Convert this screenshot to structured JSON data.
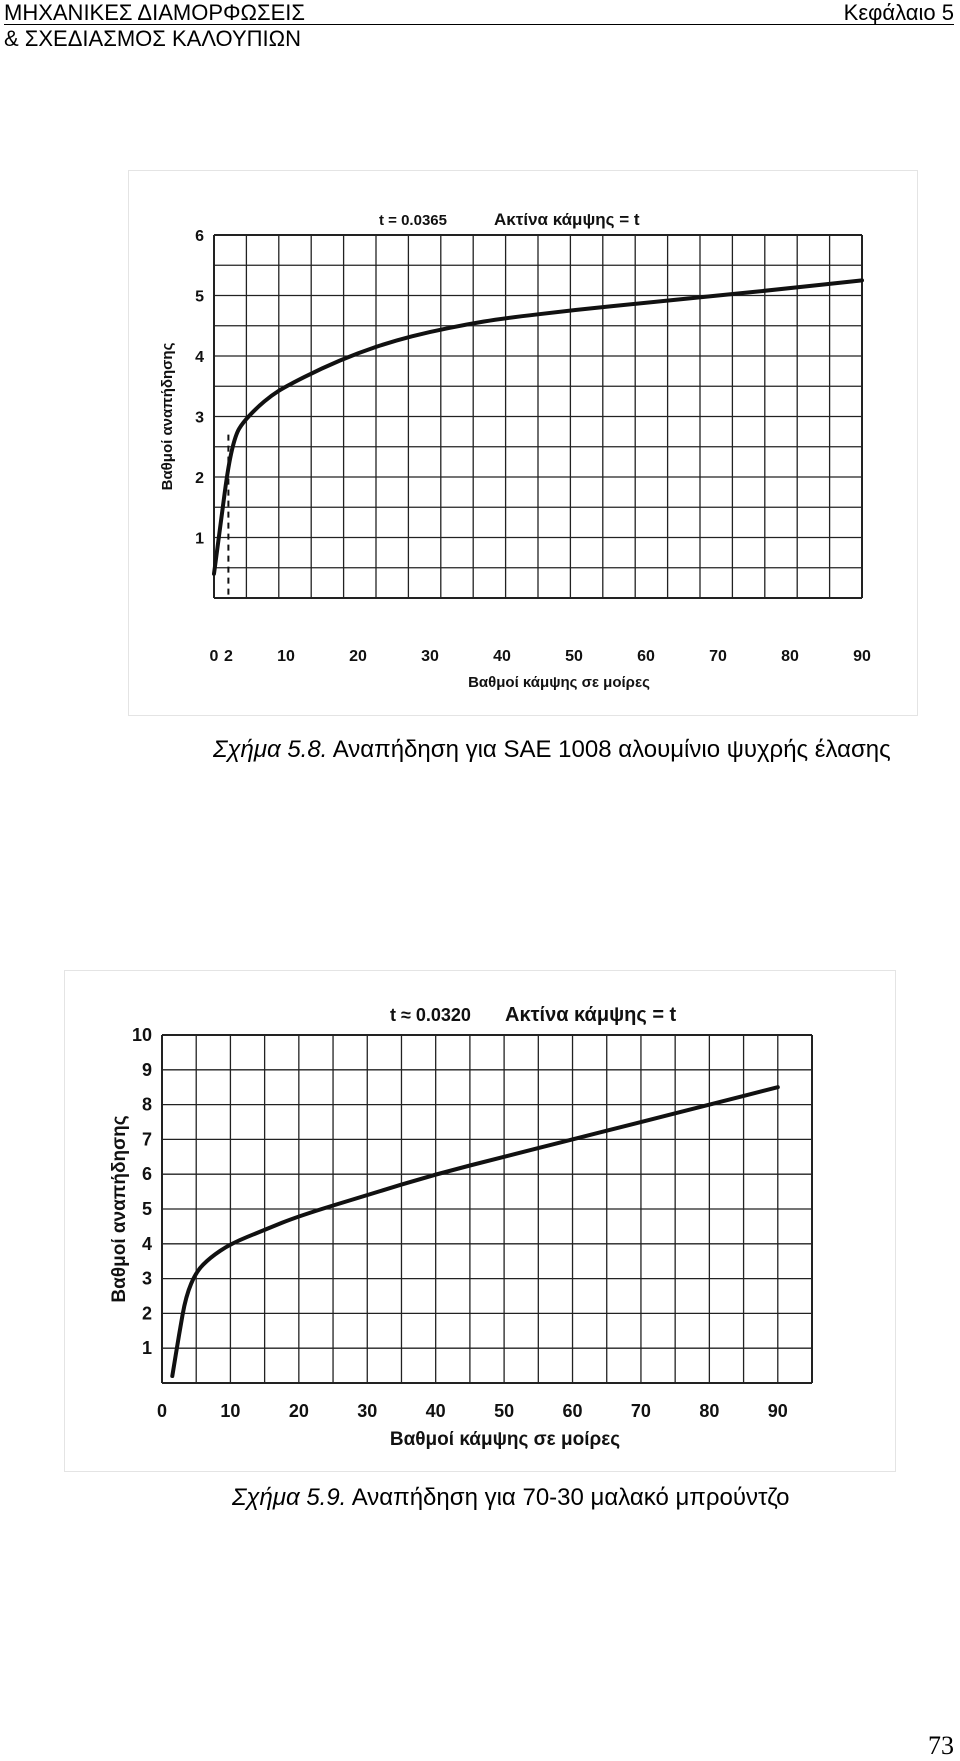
{
  "header": {
    "title_line1": "ΜΗΧΑΝΙΚΕΣ ΔΙΑΜΟΡΦΩΣΕΙΣ",
    "title_line2": "& ΣΧΕΔΙΑΣΜΟΣ ΚΑΛΟΥΠΙΩΝ",
    "chapter": "Κεφάλαιο 5"
  },
  "figures": [
    {
      "caption_label": "Σχήμα 5.8.",
      "caption_text": " Αναπήδηση για SAE 1008 αλουμίνιο ψυχρής έλασης"
    },
    {
      "caption_label": "Σχήμα 5.9.",
      "caption_text": " Αναπήδηση για 70-30 μαλακό μπρούντζο"
    }
  ],
  "page_number": "73",
  "chart_data": [
    {
      "type": "line",
      "title_left": "t = 0.0365",
      "title_right": "Ακτίνα κάμψης = t",
      "xlabel": "Βαθμοί κάμψης σε μοίρες",
      "ylabel": "Βαθμοί αναπήδησης",
      "xlim": [
        0,
        90
      ],
      "ylim": [
        0,
        6
      ],
      "xticks": [
        "0",
        "2",
        "10",
        "20",
        "30",
        "40",
        "50",
        "60",
        "70",
        "80",
        "90"
      ],
      "xtick_values": [
        0,
        2,
        10,
        20,
        30,
        40,
        50,
        60,
        70,
        80,
        90
      ],
      "yticks": [
        "1",
        "2",
        "3",
        "4",
        "5",
        "6"
      ],
      "ytick_values": [
        1,
        2,
        3,
        4,
        5,
        6
      ],
      "grid_cols": 20,
      "grid_rows": 12,
      "marker_x": 2,
      "series": [
        {
          "name": "springback",
          "x": [
            0,
            1,
            2,
            3,
            4,
            6,
            8,
            10,
            15,
            20,
            25,
            30,
            35,
            40,
            50,
            60,
            70,
            80,
            90
          ],
          "y": [
            0.4,
            1.3,
            2.2,
            2.7,
            2.9,
            3.15,
            3.35,
            3.5,
            3.8,
            4.05,
            4.25,
            4.4,
            4.52,
            4.62,
            4.76,
            4.88,
            5.0,
            5.12,
            5.25
          ]
        }
      ]
    },
    {
      "type": "line",
      "title_left": "t ≈ 0.0320",
      "title_right": "Ακτίνα κάμψης = t",
      "xlabel": "Βαθμοί κάμψης σε μοίρες",
      "ylabel": "Βαθμοί αναπήδησης",
      "xlim": [
        0,
        95
      ],
      "ylim": [
        0,
        10
      ],
      "xticks": [
        "0",
        "10",
        "20",
        "30",
        "40",
        "50",
        "60",
        "70",
        "80",
        "90"
      ],
      "xtick_values": [
        0,
        10,
        20,
        30,
        40,
        50,
        60,
        70,
        80,
        90
      ],
      "yticks": [
        "1",
        "2",
        "3",
        "4",
        "5",
        "6",
        "7",
        "8",
        "9",
        "10"
      ],
      "ytick_values": [
        1,
        2,
        3,
        4,
        5,
        6,
        7,
        8,
        9,
        10
      ],
      "grid_cols": 19,
      "grid_rows": 10,
      "series": [
        {
          "name": "springback",
          "x": [
            1.5,
            2.5,
            3.5,
            5,
            7,
            10,
            15,
            20,
            30,
            40,
            50,
            60,
            70,
            80,
            90
          ],
          "y": [
            0.2,
            1.4,
            2.5,
            3.2,
            3.6,
            4.0,
            4.4,
            4.8,
            5.4,
            6.0,
            6.5,
            7.0,
            7.5,
            8.0,
            8.5
          ]
        }
      ]
    }
  ]
}
